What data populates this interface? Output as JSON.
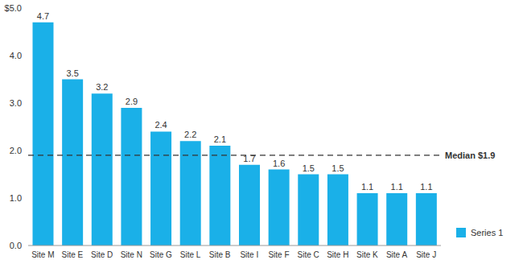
{
  "chart_data": {
    "type": "bar",
    "categories": [
      "Site M",
      "Site E",
      "Site D",
      "Site N",
      "Site G",
      "Site L",
      "Site B",
      "Site I",
      "Site F",
      "Site C",
      "Site H",
      "Site K",
      "Site A",
      "Site J"
    ],
    "series": [
      {
        "name": "Series 1",
        "color": "#1ab0e8",
        "values": [
          4.7,
          3.5,
          3.2,
          2.9,
          2.4,
          2.2,
          2.1,
          1.7,
          1.6,
          1.5,
          1.5,
          1.1,
          1.1,
          1.1
        ]
      }
    ],
    "ylim": [
      0,
      5
    ],
    "yticks": [
      {
        "value": 0,
        "label": "0.0"
      },
      {
        "value": 1,
        "label": "1.0"
      },
      {
        "value": 2,
        "label": "2.0"
      },
      {
        "value": 3,
        "label": "3.0"
      },
      {
        "value": 4,
        "label": "4.0"
      },
      {
        "value": 5,
        "label": "$5.0"
      }
    ],
    "median": {
      "value": 1.9,
      "label": "Median $1.9"
    },
    "data_labels": true,
    "grid": false,
    "legend": "lower right"
  }
}
